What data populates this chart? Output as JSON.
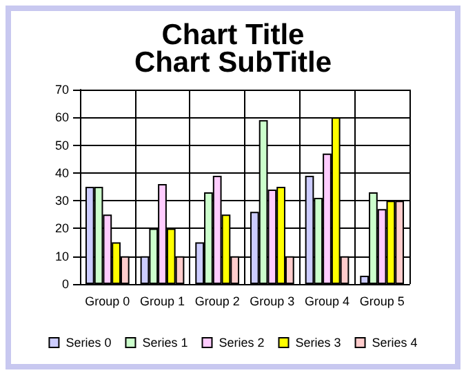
{
  "chart_data": {
    "type": "bar",
    "title": "Chart Title",
    "subtitle": "Chart SubTitle",
    "categories": [
      "Group 0",
      "Group 1",
      "Group 2",
      "Group 3",
      "Group 4",
      "Group 5"
    ],
    "series": [
      {
        "name": "Series 0",
        "color": "#ccccff",
        "values": [
          35,
          10,
          15,
          26,
          39,
          3
        ]
      },
      {
        "name": "Series 1",
        "color": "#ccffcc",
        "values": [
          35,
          20,
          33,
          59,
          31,
          33
        ]
      },
      {
        "name": "Series 2",
        "color": "#ffccff",
        "values": [
          25,
          36,
          39,
          34,
          47,
          27
        ]
      },
      {
        "name": "Series 3",
        "color": "#ffff00",
        "values": [
          15,
          20,
          25,
          35,
          60,
          30
        ]
      },
      {
        "name": "Series 4",
        "color": "#ffcccc",
        "values": [
          10,
          10,
          10,
          10,
          10,
          30
        ]
      }
    ],
    "ylim": [
      0,
      70
    ],
    "yticks": [
      0,
      10,
      20,
      30,
      40,
      50,
      60,
      70
    ],
    "grid": true,
    "legend": "bottom"
  }
}
